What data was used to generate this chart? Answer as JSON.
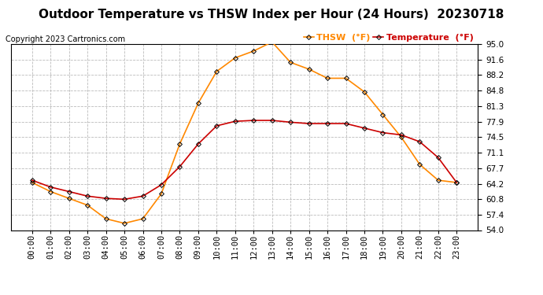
{
  "title": "Outdoor Temperature vs THSW Index per Hour (24 Hours)  20230718",
  "copyright": "Copyright 2023 Cartronics.com",
  "hours": [
    "00:00",
    "01:00",
    "02:00",
    "03:00",
    "04:00",
    "05:00",
    "06:00",
    "07:00",
    "08:00",
    "09:00",
    "10:00",
    "11:00",
    "12:00",
    "13:00",
    "14:00",
    "15:00",
    "16:00",
    "17:00",
    "18:00",
    "19:00",
    "20:00",
    "21:00",
    "22:00",
    "23:00"
  ],
  "temperature": [
    65.0,
    63.5,
    62.5,
    61.5,
    61.0,
    60.8,
    61.5,
    64.0,
    68.0,
    73.0,
    77.0,
    78.0,
    78.2,
    78.2,
    77.8,
    77.5,
    77.5,
    77.5,
    76.5,
    75.5,
    75.0,
    73.5,
    70.0,
    64.5
  ],
  "thsw": [
    64.5,
    62.5,
    61.0,
    59.5,
    56.5,
    55.5,
    56.5,
    62.0,
    73.0,
    82.0,
    89.0,
    92.0,
    93.5,
    95.5,
    91.0,
    89.5,
    87.5,
    87.5,
    84.5,
    79.5,
    74.5,
    68.5,
    65.0,
    64.5
  ],
  "temp_color": "#cc0000",
  "thsw_color": "#ff8800",
  "ylim": [
    54.0,
    95.0
  ],
  "yticks": [
    54.0,
    57.4,
    60.8,
    64.2,
    67.7,
    71.1,
    74.5,
    77.9,
    81.3,
    84.8,
    88.2,
    91.6,
    95.0
  ],
  "legend_thsw": "THSW  (°F)",
  "legend_temp": "Temperature  (°F)",
  "bg_color": "#ffffff",
  "plot_bg_color": "#ffffff",
  "grid_color": "#bbbbbb",
  "marker": "D",
  "marker_size": 3,
  "line_width": 1.2,
  "title_fontsize": 11,
  "copyright_fontsize": 7,
  "legend_fontsize": 8,
  "tick_fontsize": 7.5
}
